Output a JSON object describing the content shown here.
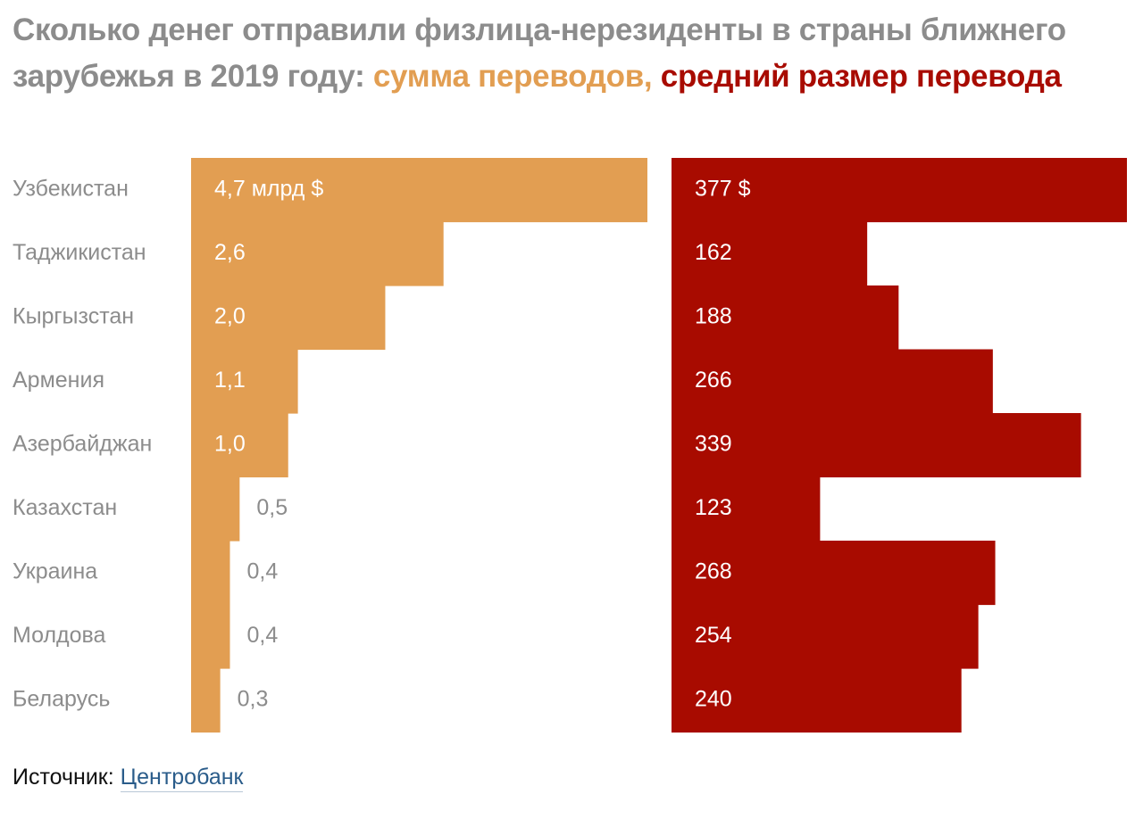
{
  "title": {
    "part1": "Сколько денег отправили физлица-нерезиденты в страны ближнего зарубежья в 2019 году:",
    "part2": "сумма переводов,",
    "part3": "средний размер перевода"
  },
  "colors": {
    "amount": "#e29e52",
    "average": "#a80b00",
    "muted": "#8c8c8c",
    "link": "#2a5c8a"
  },
  "chart_data": {
    "type": "bar",
    "orientation": "horizontal",
    "categories": [
      "Узбекистан",
      "Таджикистан",
      "Кыргызстан",
      "Армения",
      "Азербайджан",
      "Казахстан",
      "Украина",
      "Молдова",
      "Беларусь"
    ],
    "series": [
      {
        "name": "сумма переводов",
        "unit": "млрд $",
        "values": [
          4.7,
          2.6,
          2.0,
          1.1,
          1.0,
          0.5,
          0.4,
          0.4,
          0.3
        ],
        "labels": [
          "4,7 млрд $",
          "2,6",
          "2,0",
          "1,1",
          "1,0",
          "0,5",
          "0,4",
          "0,4",
          "0,3"
        ],
        "color": "#e29e52"
      },
      {
        "name": "средний размер перевода",
        "unit": "$",
        "values": [
          377,
          162,
          188,
          266,
          339,
          123,
          268,
          254,
          240
        ],
        "labels": [
          "377 $",
          "162",
          "188",
          "266",
          "339",
          "123",
          "268",
          "254",
          "240"
        ],
        "color": "#a80b00"
      }
    ]
  },
  "source": {
    "label": "Источник:",
    "link_text": "Центробанк"
  }
}
